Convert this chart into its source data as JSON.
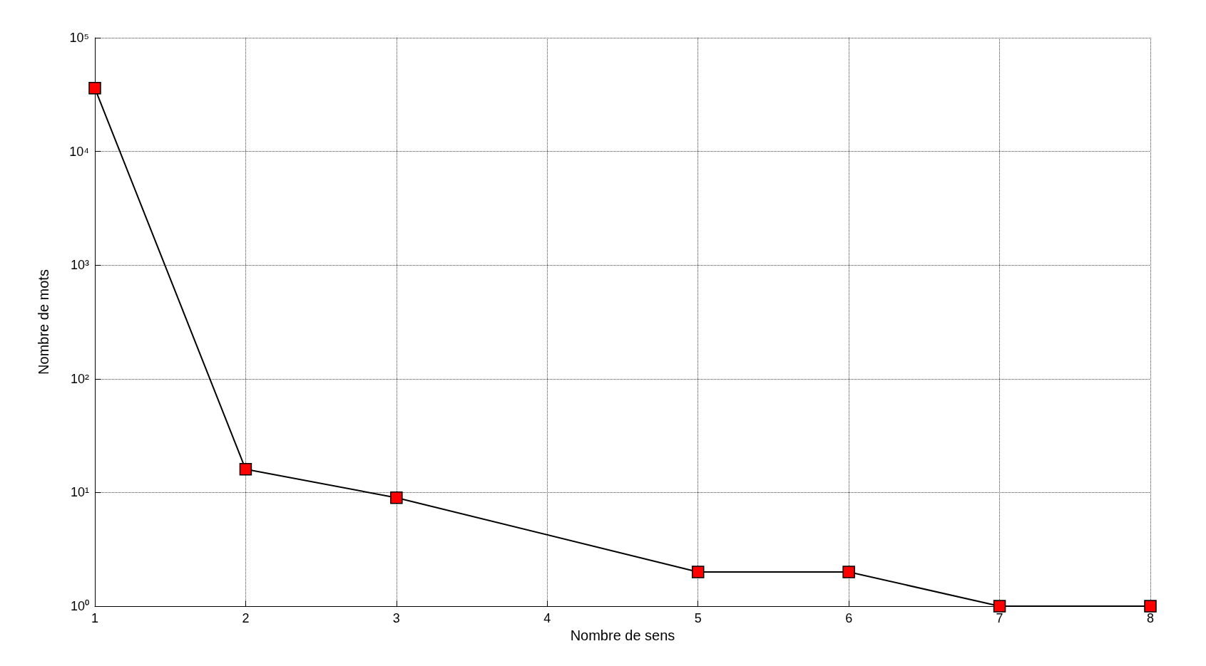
{
  "chart_data": {
    "type": "line",
    "xlabel": "Nombre de sens",
    "ylabel": "Nombre de mots",
    "x": [
      1,
      2,
      3,
      5,
      6,
      7,
      8
    ],
    "series": [
      {
        "color": "#ff0000",
        "values": [
          36000,
          16,
          9,
          2,
          2,
          1,
          1
        ]
      }
    ],
    "xlim": [
      1,
      8
    ],
    "xticks": [
      1,
      2,
      3,
      4,
      5,
      6,
      7,
      8
    ],
    "ylim": [
      1,
      100000
    ],
    "yticks": [
      {
        "value": 1,
        "label": "10⁰"
      },
      {
        "value": 10,
        "label": "10¹"
      },
      {
        "value": 100,
        "label": "10²"
      },
      {
        "value": 1000,
        "label": "10³"
      },
      {
        "value": 10000,
        "label": "10⁴"
      },
      {
        "value": 100000,
        "label": "10⁵"
      }
    ],
    "log": "y",
    "grid": true,
    "marker": "square",
    "line_style": "solid"
  }
}
